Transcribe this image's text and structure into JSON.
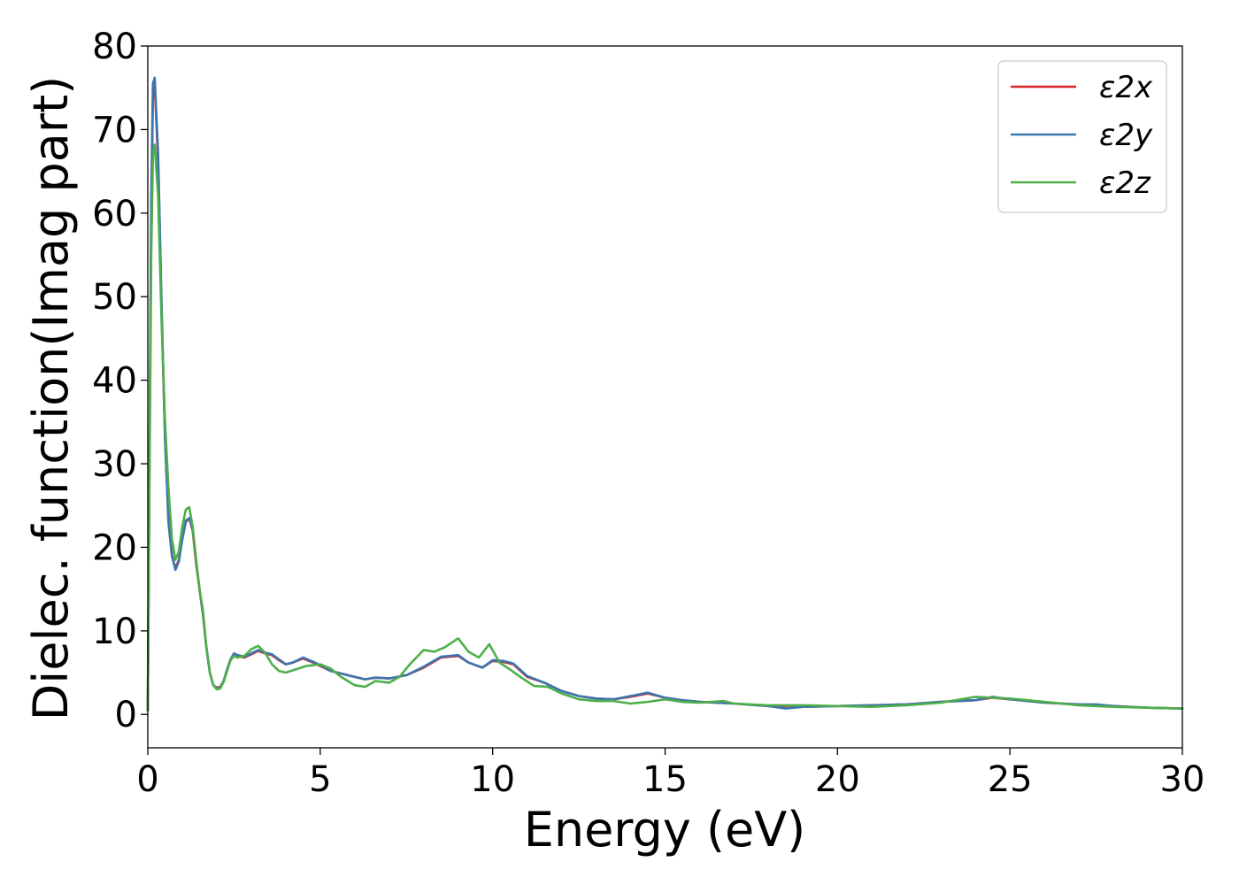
{
  "chart_data": {
    "type": "line",
    "xlabel": "Energy (eV)",
    "ylabel": "Dielec. function(Imag part)",
    "xlim": [
      0,
      30
    ],
    "ylim": [
      -4,
      80
    ],
    "xticks": [
      "0",
      "5",
      "10",
      "15",
      "20",
      "25",
      "30"
    ],
    "yticks": [
      "0",
      "10",
      "20",
      "30",
      "40",
      "50",
      "60",
      "70",
      "80"
    ],
    "grid": false,
    "legend_position": "top-right",
    "series": [
      {
        "name": "ε2x",
        "color": "#d62728",
        "x": [
          0.0,
          0.05,
          0.1,
          0.15,
          0.2,
          0.3,
          0.4,
          0.5,
          0.6,
          0.7,
          0.8,
          0.9,
          1.0,
          1.1,
          1.2,
          1.3,
          1.4,
          1.5,
          1.6,
          1.7,
          1.8,
          1.9,
          2.0,
          2.1,
          2.2,
          2.3,
          2.4,
          2.5,
          2.6,
          2.8,
          3.0,
          3.2,
          3.4,
          3.6,
          3.8,
          4.0,
          4.2,
          4.5,
          4.8,
          5.0,
          5.3,
          5.6,
          6.0,
          6.3,
          6.6,
          7.0,
          7.5,
          8.0,
          8.5,
          9.0,
          9.3,
          9.7,
          10.0,
          10.3,
          10.6,
          11.0,
          11.5,
          12.0,
          12.5,
          13.0,
          13.5,
          14.0,
          14.5,
          15.0,
          15.5,
          16.0,
          17.0,
          18.0,
          18.5,
          19.0,
          20.0,
          21.0,
          22.0,
          23.0,
          24.0,
          24.5,
          25.0,
          26.0,
          27.0,
          27.5,
          28.0,
          29.0,
          30.0
        ],
        "values": [
          0.5,
          30,
          60,
          74,
          75.5,
          66,
          48,
          33,
          23,
          19,
          17.5,
          18.5,
          21,
          23,
          23.5,
          22,
          18,
          15,
          12,
          8,
          5,
          3.5,
          3.2,
          3.3,
          4,
          5.3,
          6.5,
          7.2,
          7,
          6.8,
          7.2,
          7.6,
          7.3,
          7.1,
          6.5,
          6,
          6.2,
          6.7,
          6.2,
          5.8,
          5.2,
          4.9,
          4.5,
          4.2,
          4.4,
          4.3,
          4.7,
          5.6,
          6.8,
          7.0,
          6.2,
          5.6,
          6.4,
          6.3,
          6.0,
          4.5,
          3.8,
          2.8,
          2.2,
          1.9,
          1.8,
          2.1,
          2.5,
          2.0,
          1.7,
          1.5,
          1.3,
          1.0,
          0.8,
          0.9,
          1.0,
          1.1,
          1.2,
          1.5,
          1.7,
          2.0,
          1.8,
          1.4,
          1.2,
          1.1,
          1.0,
          0.8,
          0.7
        ]
      },
      {
        "name": "ε2y",
        "color": "#3b75af",
        "x": [
          0.0,
          0.05,
          0.1,
          0.15,
          0.2,
          0.3,
          0.4,
          0.5,
          0.6,
          0.7,
          0.8,
          0.9,
          1.0,
          1.1,
          1.2,
          1.3,
          1.4,
          1.5,
          1.6,
          1.7,
          1.8,
          1.9,
          2.0,
          2.1,
          2.2,
          2.3,
          2.4,
          2.5,
          2.6,
          2.8,
          3.0,
          3.2,
          3.4,
          3.6,
          3.8,
          4.0,
          4.2,
          4.5,
          4.8,
          5.0,
          5.3,
          5.6,
          6.0,
          6.3,
          6.6,
          7.0,
          7.5,
          8.0,
          8.5,
          9.0,
          9.3,
          9.7,
          10.0,
          10.3,
          10.6,
          11.0,
          11.5,
          12.0,
          12.5,
          13.0,
          13.5,
          14.0,
          14.5,
          15.0,
          15.5,
          16.0,
          17.0,
          18.0,
          18.5,
          19.0,
          20.0,
          21.0,
          22.0,
          23.0,
          24.0,
          24.5,
          25.0,
          26.0,
          27.0,
          27.5,
          28.0,
          29.0,
          30.0
        ],
        "values": [
          0.5,
          31,
          62,
          75.5,
          76.2,
          67,
          49,
          33,
          23,
          19,
          17.3,
          18.3,
          21,
          23.2,
          23.5,
          22.2,
          18.5,
          15,
          12,
          8,
          5,
          3.5,
          3.1,
          3.2,
          4,
          5.4,
          6.6,
          7.3,
          7.1,
          6.9,
          7.3,
          7.7,
          7.4,
          7.2,
          6.6,
          6.0,
          6.2,
          6.8,
          6.3,
          5.9,
          5.2,
          4.9,
          4.5,
          4.2,
          4.4,
          4.3,
          4.7,
          5.7,
          6.9,
          7.1,
          6.2,
          5.6,
          6.5,
          6.4,
          6.1,
          4.6,
          3.8,
          2.8,
          2.2,
          1.9,
          1.8,
          2.2,
          2.6,
          2.0,
          1.7,
          1.5,
          1.3,
          1.0,
          0.7,
          0.9,
          1.0,
          1.1,
          1.2,
          1.5,
          1.7,
          2.1,
          1.8,
          1.4,
          1.2,
          1.2,
          1.0,
          0.8,
          0.7
        ]
      },
      {
        "name": "ε2z",
        "color": "#4daf4a",
        "x": [
          0.0,
          0.05,
          0.1,
          0.15,
          0.2,
          0.3,
          0.4,
          0.5,
          0.6,
          0.7,
          0.8,
          0.9,
          1.0,
          1.1,
          1.2,
          1.3,
          1.4,
          1.5,
          1.6,
          1.7,
          1.8,
          1.9,
          2.0,
          2.1,
          2.2,
          2.3,
          2.4,
          2.5,
          2.6,
          2.8,
          3.0,
          3.2,
          3.4,
          3.6,
          3.8,
          4.0,
          4.3,
          4.6,
          5.0,
          5.3,
          5.6,
          6.0,
          6.3,
          6.6,
          7.0,
          7.3,
          7.6,
          8.0,
          8.3,
          8.6,
          9.0,
          9.3,
          9.6,
          9.9,
          10.2,
          10.5,
          10.8,
          11.2,
          11.6,
          12.0,
          12.5,
          13.0,
          13.5,
          14.0,
          14.5,
          15.0,
          15.5,
          16.0,
          16.7,
          17.0,
          18.0,
          19.0,
          20.0,
          21.0,
          22.0,
          23.0,
          24.0,
          24.5,
          25.0,
          26.0,
          27.0,
          28.0,
          29.0,
          30.0
        ],
        "values": [
          0.5,
          28,
          55,
          67,
          68.2,
          62,
          47,
          35,
          27,
          21,
          18.5,
          19.5,
          22.5,
          24.5,
          24.8,
          22.5,
          18.5,
          15,
          12.5,
          8,
          5,
          3.5,
          3.0,
          3.1,
          3.9,
          5.2,
          6.5,
          7.0,
          6.8,
          7.0,
          7.8,
          8.2,
          7.4,
          6.0,
          5.2,
          5.0,
          5.4,
          5.8,
          6.0,
          5.5,
          4.5,
          3.5,
          3.3,
          4.0,
          3.8,
          4.5,
          6.0,
          7.7,
          7.5,
          8.0,
          9.1,
          7.5,
          6.8,
          8.4,
          6.2,
          5.4,
          4.5,
          3.4,
          3.3,
          2.5,
          1.8,
          1.6,
          1.6,
          1.3,
          1.5,
          1.8,
          1.5,
          1.4,
          1.6,
          1.3,
          1.1,
          1.1,
          1.0,
          0.9,
          1.1,
          1.4,
          2.1,
          2.0,
          1.9,
          1.5,
          1.1,
          0.9,
          0.8,
          0.7
        ]
      }
    ]
  }
}
